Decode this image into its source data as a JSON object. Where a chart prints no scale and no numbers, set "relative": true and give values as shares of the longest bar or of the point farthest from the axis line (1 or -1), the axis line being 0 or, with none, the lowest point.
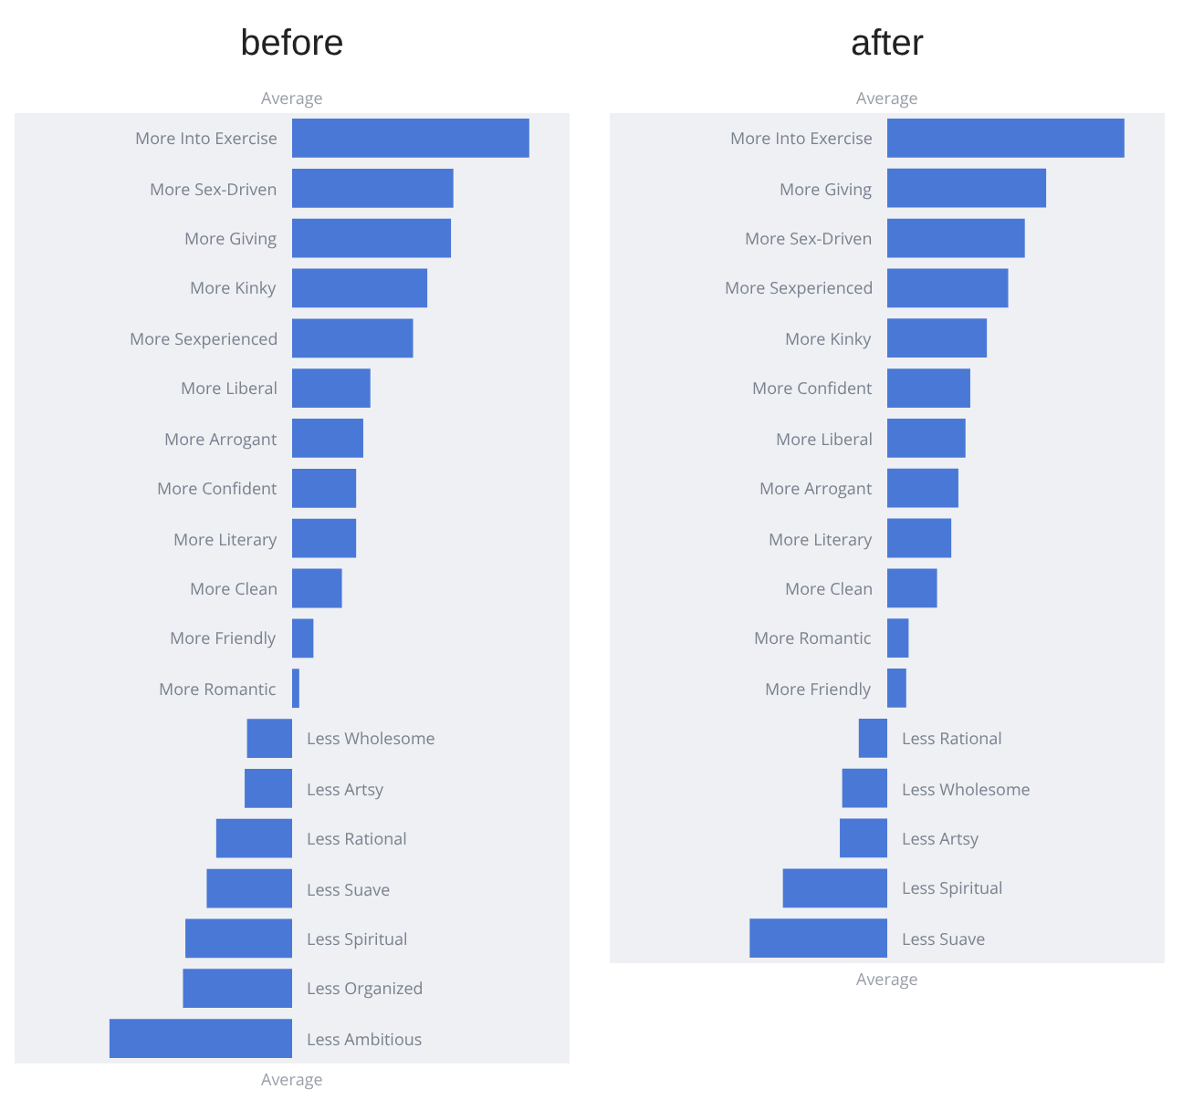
{
  "chart_data": [
    {
      "type": "bar",
      "title": "before",
      "orientation": "horizontal",
      "relative": true,
      "color": "#4a78d6",
      "annotations": [
        "Average",
        "Average"
      ],
      "categories": [
        "More Into Exercise",
        "More Sex-Driven",
        "More Giving",
        "More Kinky",
        "More Sexperienced",
        "More Liberal",
        "More Arrogant",
        "More Confident",
        "More Literary",
        "More Clean",
        "More Friendly",
        "More Romantic",
        "Less Wholesome",
        "Less Artsy",
        "Less Rational",
        "Less Suave",
        "Less Spiritual",
        "Less Organized",
        "Less Ambitious"
      ],
      "values": [
        1,
        0.68,
        0.67,
        0.57,
        0.51,
        0.33,
        0.3,
        0.27,
        0.27,
        0.21,
        0.09,
        0.03,
        -0.19,
        -0.2,
        -0.32,
        -0.36,
        -0.45,
        -0.46,
        -0.77
      ]
    },
    {
      "type": "bar",
      "title": "after",
      "orientation": "horizontal",
      "relative": true,
      "color": "#4a78d6",
      "annotations": [
        "Average",
        "Average"
      ],
      "categories": [
        "More Into Exercise",
        "More Giving",
        "More Sex-Driven",
        "More Sexperienced",
        "More Kinky",
        "More Confident",
        "More Liberal",
        "More Arrogant",
        "More Literary",
        "More Clean",
        "More Romantic",
        "More Friendly",
        "Less Rational",
        "Less Wholesome",
        "Less Artsy",
        "Less Spiritual",
        "Less Suave"
      ],
      "values": [
        1,
        0.67,
        0.58,
        0.51,
        0.42,
        0.35,
        0.33,
        0.3,
        0.27,
        0.21,
        0.09,
        0.08,
        -0.12,
        -0.19,
        -0.2,
        -0.44,
        -0.58
      ]
    }
  ]
}
